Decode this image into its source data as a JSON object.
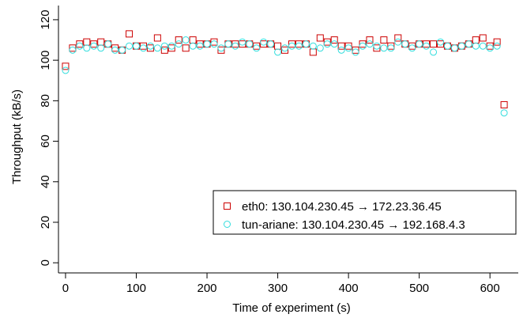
{
  "chart_data": {
    "type": "scatter",
    "xlabel": "Time of experiment (s)",
    "ylabel": "Throughput (kB/s)",
    "xlim": [
      -10,
      640
    ],
    "ylim": [
      -5,
      127
    ],
    "xticks": [
      0,
      100,
      200,
      300,
      400,
      500,
      600
    ],
    "yticks": [
      0,
      20,
      40,
      60,
      80,
      100,
      120
    ],
    "grid": false,
    "legend_position": "bottom-right",
    "series": [
      {
        "name": "eth0: 130.104.230.45 → 172.23.36.45",
        "marker": "square",
        "color": "#cc0000",
        "x": [
          0,
          10,
          20,
          30,
          40,
          50,
          60,
          70,
          80,
          90,
          100,
          110,
          120,
          130,
          140,
          150,
          160,
          170,
          180,
          190,
          200,
          210,
          220,
          230,
          240,
          250,
          260,
          270,
          280,
          290,
          300,
          310,
          320,
          330,
          340,
          350,
          360,
          370,
          380,
          390,
          400,
          410,
          420,
          430,
          440,
          450,
          460,
          470,
          480,
          490,
          500,
          510,
          520,
          530,
          540,
          550,
          560,
          570,
          580,
          590,
          600,
          610,
          620
        ],
        "y": [
          97,
          106,
          108,
          109,
          108,
          109,
          108,
          106,
          105,
          113,
          107,
          107,
          106,
          111,
          105,
          106,
          110,
          106,
          110,
          108,
          108,
          109,
          105,
          108,
          108,
          108,
          108,
          107,
          108,
          108,
          107,
          105,
          108,
          108,
          108,
          104,
          111,
          109,
          110,
          107,
          107,
          105,
          108,
          110,
          106,
          110,
          107,
          111,
          108,
          107,
          108,
          108,
          108,
          108,
          107,
          106,
          107,
          108,
          110,
          111,
          107,
          109,
          78
        ]
      },
      {
        "name": "tun-ariane: 130.104.230.45 → 192.168.4.3",
        "marker": "circle",
        "color": "#33dddd",
        "x": [
          0,
          10,
          20,
          30,
          40,
          50,
          60,
          70,
          80,
          90,
          100,
          110,
          120,
          130,
          140,
          150,
          160,
          170,
          180,
          190,
          200,
          210,
          220,
          230,
          240,
          250,
          260,
          270,
          280,
          290,
          300,
          310,
          320,
          330,
          340,
          350,
          360,
          370,
          380,
          390,
          400,
          410,
          420,
          430,
          440,
          450,
          460,
          470,
          480,
          490,
          500,
          510,
          520,
          530,
          540,
          550,
          560,
          570,
          580,
          590,
          600,
          610,
          620
        ],
        "y": [
          95,
          105,
          107,
          106,
          107,
          106,
          108,
          105,
          105,
          107,
          107,
          106,
          107,
          106,
          107,
          107,
          108,
          110,
          107,
          107,
          108,
          108,
          106,
          108,
          107,
          109,
          108,
          106,
          109,
          108,
          104,
          106,
          107,
          107,
          108,
          107,
          106,
          108,
          108,
          105,
          106,
          104,
          107,
          108,
          107,
          106,
          106,
          109,
          108,
          106,
          108,
          107,
          104,
          109,
          107,
          106,
          107,
          108,
          107,
          107,
          106,
          107,
          74
        ]
      }
    ]
  }
}
